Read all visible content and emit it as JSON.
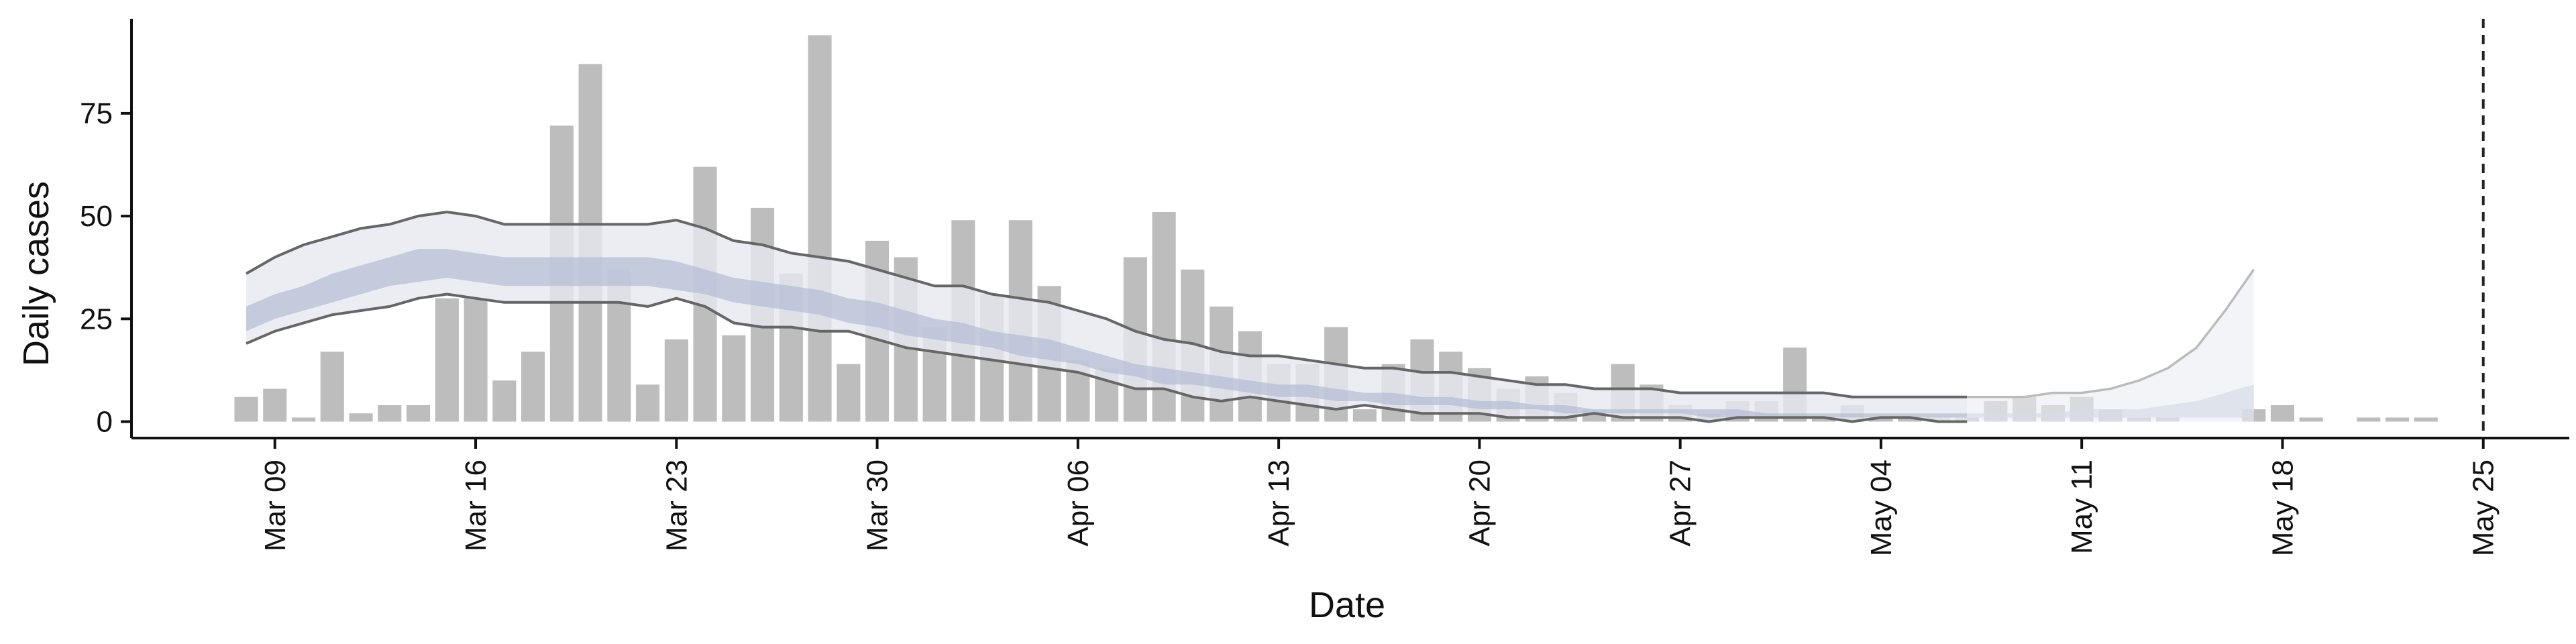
{
  "chart_data": {
    "type": "bar",
    "xlabel": "Date",
    "ylabel": "Daily cases",
    "x_type": "date",
    "xlim": [
      "2020-03-04",
      "2020-05-28"
    ],
    "ylim": [
      -4,
      98
    ],
    "x_ticks": [
      {
        "date": "2020-03-09",
        "label": "Mar 09"
      },
      {
        "date": "2020-03-16",
        "label": "Mar 16"
      },
      {
        "date": "2020-03-23",
        "label": "Mar 23"
      },
      {
        "date": "2020-03-30",
        "label": "Mar 30"
      },
      {
        "date": "2020-04-06",
        "label": "Apr 06"
      },
      {
        "date": "2020-04-13",
        "label": "Apr 13"
      },
      {
        "date": "2020-04-20",
        "label": "Apr 20"
      },
      {
        "date": "2020-04-27",
        "label": "Apr 27"
      },
      {
        "date": "2020-05-04",
        "label": "May 04"
      },
      {
        "date": "2020-05-11",
        "label": "May 11"
      },
      {
        "date": "2020-05-18",
        "label": "May 18"
      },
      {
        "date": "2020-05-25",
        "label": "May 25"
      }
    ],
    "y_ticks": [
      0,
      25,
      50,
      75
    ],
    "grid": false,
    "vline": {
      "date": "2020-05-25",
      "style": "dashed"
    },
    "colors": {
      "bars": "#bdbdbd",
      "band_outer": "#e6e8f0",
      "band_inner": "#b5bfd6",
      "bound_lines": "#666666",
      "forecast_fill": "#e9ecf2",
      "forecast_line": "#bbbbbb",
      "vline": "#222222"
    },
    "bars": {
      "start_date": "2020-03-08",
      "values": [
        6,
        8,
        1,
        17,
        2,
        4,
        4,
        30,
        30,
        10,
        17,
        72,
        87,
        37,
        9,
        20,
        62,
        21,
        52,
        36,
        94,
        14,
        44,
        40,
        23,
        49,
        31,
        49,
        33,
        15,
        13,
        40,
        51,
        37,
        28,
        22,
        14,
        14,
        23,
        3,
        14,
        20,
        17,
        13,
        8,
        11,
        7,
        3,
        14,
        9,
        4,
        2,
        5,
        5,
        18,
        1,
        4,
        1,
        1,
        1,
        1,
        5,
        6,
        4,
        6,
        3,
        1,
        1,
        null,
        null,
        3,
        4,
        1,
        null,
        1,
        1,
        1
      ]
    },
    "estimate": {
      "start_date": "2020-03-08",
      "upper": [
        36,
        40,
        43,
        45,
        47,
        48,
        50,
        51,
        50,
        48,
        48,
        48,
        48,
        48,
        48,
        49,
        47,
        44,
        43,
        41,
        40,
        39,
        37,
        35,
        33,
        33,
        31,
        30,
        29,
        27,
        25,
        22,
        20,
        19,
        17,
        16,
        16,
        15,
        14,
        13,
        13,
        12,
        12,
        11,
        10,
        9,
        9,
        8,
        8,
        8,
        7,
        7,
        7,
        7,
        7,
        7,
        6,
        6,
        6,
        6,
        6,
        6,
        6,
        7,
        7,
        8,
        10,
        13,
        18,
        27,
        37
      ],
      "inner_upper": [
        28,
        31,
        33,
        36,
        38,
        40,
        42,
        42,
        41,
        40,
        40,
        40,
        40,
        40,
        40,
        39,
        37,
        35,
        34,
        33,
        32,
        30,
        29,
        27,
        25,
        24,
        22,
        21,
        20,
        18,
        16,
        14,
        13,
        12,
        11,
        10,
        9,
        9,
        8,
        7,
        7,
        6,
        6,
        5,
        5,
        4,
        4,
        3,
        3,
        3,
        3,
        3,
        3,
        2,
        2,
        2,
        2,
        2,
        2,
        2,
        2,
        2,
        2,
        2,
        3,
        3,
        3,
        4,
        5,
        7,
        9
      ],
      "inner_lower": [
        22,
        25,
        27,
        29,
        31,
        33,
        34,
        35,
        34,
        33,
        33,
        33,
        33,
        33,
        33,
        32,
        31,
        29,
        28,
        27,
        26,
        24,
        23,
        21,
        20,
        19,
        18,
        16,
        15,
        14,
        12,
        11,
        9,
        9,
        8,
        7,
        6,
        6,
        5,
        5,
        4,
        4,
        4,
        3,
        3,
        3,
        2,
        2,
        2,
        2,
        2,
        1,
        1,
        1,
        1,
        1,
        1,
        1,
        1,
        1,
        1,
        1,
        1,
        1,
        1,
        1,
        1,
        1,
        1,
        1,
        1
      ],
      "lower": [
        19,
        22,
        24,
        26,
        27,
        28,
        30,
        31,
        30,
        29,
        29,
        29,
        29,
        29,
        28,
        30,
        28,
        24,
        23,
        23,
        22,
        22,
        20,
        18,
        17,
        16,
        15,
        14,
        13,
        12,
        10,
        8,
        8,
        6,
        5,
        6,
        5,
        4,
        3,
        4,
        3,
        2,
        2,
        2,
        1,
        1,
        1,
        2,
        1,
        1,
        1,
        0,
        1,
        1,
        1,
        1,
        0,
        1,
        1,
        0,
        0,
        0,
        0,
        0,
        0,
        0,
        0,
        0,
        0,
        0,
        0
      ],
      "forecast_from_index": 60
    }
  }
}
